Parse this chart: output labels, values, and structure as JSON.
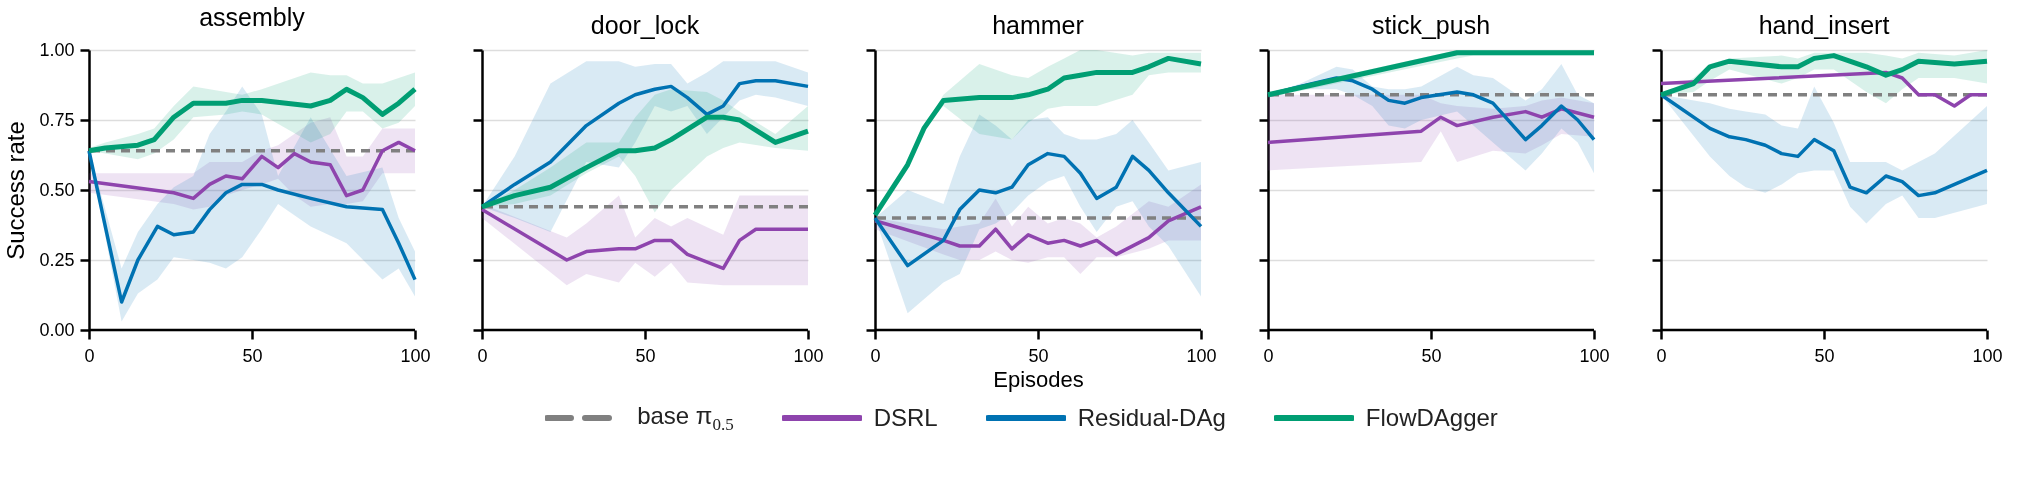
{
  "chart_data": [
    {
      "type": "line",
      "title": "assembly",
      "ylabel": "Success rate",
      "xlim": [
        0,
        100
      ],
      "xticks": [
        0,
        50,
        100
      ],
      "ylim": [
        0,
        1
      ],
      "yticks": [
        {
          "value": 0,
          "label": "0.00"
        },
        {
          "value": 0.25,
          "label": "0.25"
        },
        {
          "value": 0.5,
          "label": "0.50"
        },
        {
          "value": 0.75,
          "label": "0.75"
        },
        {
          "value": 1,
          "label": "1.00"
        }
      ],
      "grid": "y",
      "legend": "bottom",
      "ref_lines": [
        {
          "axis": "y",
          "value": 0.64,
          "label": "base π$_{0.5}$",
          "color": "#808080",
          "line_style": "dashed"
        }
      ],
      "series": [
        {
          "name": "DSRL",
          "color": "#8e44ad",
          "x": [
            0,
            26,
            32,
            37,
            42,
            47,
            53,
            58,
            63,
            68,
            74,
            79,
            84,
            90,
            95,
            100
          ],
          "values": [
            0.53,
            0.49,
            0.47,
            0.52,
            0.55,
            0.54,
            0.62,
            0.58,
            0.63,
            0.6,
            0.59,
            0.48,
            0.5,
            0.64,
            0.67,
            0.64
          ],
          "lower": [
            0.49,
            0.45,
            0.43,
            0.44,
            0.48,
            0.5,
            0.52,
            0.54,
            0.48,
            0.44,
            0.45,
            0.45,
            0.46,
            0.56,
            0.56,
            0.56
          ],
          "upper": [
            0.56,
            0.56,
            0.56,
            0.6,
            0.6,
            0.6,
            0.64,
            0.66,
            0.7,
            0.74,
            0.76,
            0.62,
            0.62,
            0.72,
            0.72,
            0.72
          ]
        },
        {
          "name": "Residual-DAg",
          "color": "#0072b2",
          "x": [
            0,
            10,
            15,
            21,
            26,
            32,
            37,
            42,
            47,
            53,
            58,
            68,
            79,
            90,
            95,
            100
          ],
          "values": [
            0.64,
            0.1,
            0.25,
            0.37,
            0.34,
            0.35,
            0.43,
            0.49,
            0.52,
            0.52,
            0.5,
            0.47,
            0.44,
            0.43,
            0.31,
            0.18
          ],
          "lower": [
            0.64,
            0.03,
            0.13,
            0.18,
            0.26,
            0.25,
            0.24,
            0.22,
            0.26,
            0.36,
            0.45,
            0.37,
            0.31,
            0.18,
            0.22,
            0.12
          ],
          "upper": [
            0.64,
            0.22,
            0.35,
            0.45,
            0.51,
            0.55,
            0.7,
            0.78,
            0.87,
            0.77,
            0.55,
            0.76,
            0.55,
            0.58,
            0.4,
            0.28
          ]
        },
        {
          "name": "FlowDAgger",
          "color": "#009e73",
          "x": [
            0,
            5,
            15,
            20,
            26,
            32,
            42,
            47,
            53,
            68,
            74,
            79,
            84,
            90,
            95,
            100
          ],
          "values": [
            0.64,
            0.65,
            0.66,
            0.68,
            0.76,
            0.81,
            0.81,
            0.82,
            0.82,
            0.8,
            0.82,
            0.86,
            0.83,
            0.77,
            0.81,
            0.86
          ],
          "lower": [
            0.64,
            0.63,
            0.61,
            0.63,
            0.68,
            0.76,
            0.77,
            0.78,
            0.77,
            0.67,
            0.7,
            0.78,
            0.78,
            0.72,
            0.74,
            0.8
          ],
          "upper": [
            0.65,
            0.67,
            0.7,
            0.72,
            0.8,
            0.87,
            0.85,
            0.84,
            0.86,
            0.92,
            0.91,
            0.91,
            0.88,
            0.88,
            0.9,
            0.92
          ]
        }
      ]
    },
    {
      "type": "line",
      "title": "door_lock",
      "xlim": [
        0,
        100
      ],
      "xticks": [
        0,
        50,
        100
      ],
      "ylim": [
        0,
        1
      ],
      "yticks": [
        0,
        0.25,
        0.5,
        0.75,
        1
      ],
      "tick_labels": "x",
      "grid": "y",
      "ref_lines": [
        {
          "axis": "y",
          "value": 0.44,
          "color": "#808080",
          "line_style": "dashed"
        }
      ],
      "series": [
        {
          "name": "DSRL",
          "color": "#8e44ad",
          "x": [
            0,
            26,
            32,
            42,
            47,
            53,
            58,
            63,
            74,
            79,
            84,
            100
          ],
          "values": [
            0.43,
            0.25,
            0.28,
            0.29,
            0.29,
            0.32,
            0.32,
            0.27,
            0.22,
            0.32,
            0.36,
            0.36
          ],
          "lower": [
            0.4,
            0.16,
            0.2,
            0.17,
            0.24,
            0.19,
            0.24,
            0.17,
            0.16,
            0.16,
            0.16,
            0.16
          ],
          "upper": [
            0.45,
            0.33,
            0.38,
            0.48,
            0.33,
            0.4,
            0.37,
            0.4,
            0.34,
            0.48,
            0.48,
            0.48
          ]
        },
        {
          "name": "Residual-DAg",
          "color": "#0072b2",
          "x": [
            0,
            10,
            21,
            32,
            42,
            47,
            53,
            58,
            63,
            69,
            74,
            79,
            84,
            90,
            100
          ],
          "values": [
            0.44,
            0.52,
            0.6,
            0.73,
            0.81,
            0.84,
            0.86,
            0.87,
            0.83,
            0.77,
            0.8,
            0.88,
            0.89,
            0.89,
            0.87
          ],
          "lower": [
            0.44,
            0.4,
            0.35,
            0.6,
            0.58,
            0.67,
            0.8,
            0.78,
            0.8,
            0.7,
            0.76,
            0.82,
            0.84,
            0.83,
            0.8
          ],
          "upper": [
            0.44,
            0.62,
            0.88,
            0.96,
            0.96,
            0.94,
            0.95,
            0.95,
            0.88,
            0.92,
            0.96,
            0.96,
            0.96,
            0.96,
            0.92
          ]
        },
        {
          "name": "FlowDAgger",
          "color": "#009e73",
          "x": [
            0,
            10,
            21,
            32,
            42,
            47,
            53,
            58,
            69,
            74,
            79,
            90,
            100
          ],
          "values": [
            0.44,
            0.48,
            0.51,
            0.58,
            0.64,
            0.64,
            0.65,
            0.68,
            0.76,
            0.76,
            0.75,
            0.67,
            0.71
          ],
          "lower": [
            0.44,
            0.45,
            0.48,
            0.56,
            0.62,
            0.55,
            0.42,
            0.5,
            0.62,
            0.65,
            0.67,
            0.65,
            0.64
          ],
          "upper": [
            0.44,
            0.5,
            0.58,
            0.67,
            0.67,
            0.76,
            0.84,
            0.86,
            0.85,
            0.82,
            0.78,
            0.7,
            0.8
          ]
        }
      ]
    },
    {
      "type": "line",
      "title": "hammer",
      "xlabel": "Episodes",
      "xlim": [
        0,
        100
      ],
      "xticks": [
        0,
        50,
        100
      ],
      "ylim": [
        0,
        1
      ],
      "yticks": [
        0,
        0.25,
        0.5,
        0.75,
        1
      ],
      "tick_labels": "x",
      "grid": "y",
      "ref_lines": [
        {
          "axis": "y",
          "value": 0.4,
          "color": "#808080",
          "line_style": "dashed"
        }
      ],
      "series": [
        {
          "name": "DSRL",
          "color": "#8e44ad",
          "x": [
            0,
            21,
            26,
            32,
            37,
            42,
            47,
            53,
            58,
            63,
            68,
            74,
            84,
            90,
            100
          ],
          "values": [
            0.39,
            0.32,
            0.3,
            0.3,
            0.36,
            0.29,
            0.34,
            0.31,
            0.32,
            0.3,
            0.32,
            0.27,
            0.33,
            0.39,
            0.44
          ],
          "lower": [
            0.36,
            0.27,
            0.25,
            0.25,
            0.28,
            0.25,
            0.24,
            0.26,
            0.26,
            0.2,
            0.26,
            0.26,
            0.29,
            0.32,
            0.32
          ],
          "upper": [
            0.4,
            0.36,
            0.37,
            0.38,
            0.47,
            0.37,
            0.44,
            0.38,
            0.4,
            0.38,
            0.33,
            0.37,
            0.46,
            0.44,
            0.52
          ]
        },
        {
          "name": "Residual-DAg",
          "color": "#0072b2",
          "x": [
            0,
            10,
            21,
            26,
            32,
            37,
            42,
            47,
            53,
            58,
            63,
            68,
            74,
            79,
            84,
            90,
            100
          ],
          "values": [
            0.4,
            0.23,
            0.32,
            0.43,
            0.5,
            0.49,
            0.51,
            0.59,
            0.63,
            0.62,
            0.56,
            0.47,
            0.51,
            0.62,
            0.57,
            0.49,
            0.37
          ],
          "lower": [
            0.4,
            0.06,
            0.17,
            0.2,
            0.36,
            0.38,
            0.42,
            0.48,
            0.53,
            0.55,
            0.44,
            0.35,
            0.44,
            0.46,
            0.37,
            0.3,
            0.12
          ],
          "upper": [
            0.4,
            0.5,
            0.45,
            0.62,
            0.77,
            0.73,
            0.68,
            0.75,
            0.76,
            0.7,
            0.68,
            0.68,
            0.7,
            0.75,
            0.67,
            0.57,
            0.6
          ]
        },
        {
          "name": "FlowDAgger",
          "color": "#009e73",
          "x": [
            0,
            10,
            15,
            21,
            32,
            42,
            47,
            53,
            58,
            63,
            68,
            79,
            84,
            90,
            100
          ],
          "values": [
            0.41,
            0.59,
            0.72,
            0.82,
            0.83,
            0.83,
            0.84,
            0.86,
            0.9,
            0.91,
            0.92,
            0.92,
            0.94,
            0.97,
            0.95
          ],
          "lower": [
            0.41,
            0.59,
            0.72,
            0.8,
            0.7,
            0.68,
            0.74,
            0.79,
            0.8,
            0.8,
            0.8,
            0.84,
            0.91,
            0.92,
            0.92
          ],
          "upper": [
            0.41,
            0.59,
            0.72,
            0.84,
            0.95,
            0.91,
            0.9,
            0.94,
            0.97,
            1,
            1,
            0.98,
            0.99,
            0.99,
            0.99
          ]
        }
      ]
    },
    {
      "type": "line",
      "title": "stick_push",
      "xlim": [
        0,
        100
      ],
      "xticks": [
        0,
        50,
        100
      ],
      "ylim": [
        0,
        1
      ],
      "yticks": [
        0,
        0.25,
        0.5,
        0.75,
        1
      ],
      "tick_labels": "x",
      "grid": "y",
      "ref_lines": [
        {
          "axis": "y",
          "value": 0.84,
          "color": "#808080",
          "line_style": "dashed"
        }
      ],
      "series": [
        {
          "name": "DSRL",
          "color": "#8e44ad",
          "x": [
            0,
            47,
            53,
            58,
            69,
            79,
            84,
            90,
            100
          ],
          "values": [
            0.67,
            0.71,
            0.76,
            0.73,
            0.76,
            0.78,
            0.76,
            0.79,
            0.76
          ],
          "lower": [
            0.57,
            0.6,
            0.71,
            0.6,
            0.64,
            0.63,
            0.66,
            0.7,
            0.69
          ],
          "upper": [
            0.84,
            0.84,
            0.81,
            0.8,
            0.79,
            0.8,
            0.82,
            0.83,
            0.81
          ]
        },
        {
          "name": "Residual-DAg",
          "color": "#0072b2",
          "x": [
            0,
            10,
            21,
            26,
            32,
            37,
            42,
            47,
            58,
            63,
            69,
            79,
            84,
            90,
            95,
            100
          ],
          "values": [
            0.84,
            0.87,
            0.9,
            0.89,
            0.86,
            0.82,
            0.81,
            0.83,
            0.85,
            0.84,
            0.81,
            0.68,
            0.73,
            0.8,
            0.75,
            0.68
          ],
          "lower": [
            0.84,
            0.86,
            0.86,
            0.84,
            0.8,
            0.73,
            0.72,
            0.75,
            0.78,
            0.73,
            0.67,
            0.57,
            0.63,
            0.72,
            0.67,
            0.56
          ],
          "upper": [
            0.84,
            0.88,
            0.94,
            0.93,
            0.87,
            0.86,
            0.86,
            0.87,
            0.94,
            0.91,
            0.9,
            0.82,
            0.86,
            0.95,
            0.84,
            0.81
          ]
        },
        {
          "name": "FlowDAgger",
          "color": "#009e73",
          "x": [
            0,
            58,
            63,
            100
          ],
          "values": [
            0.84,
            0.99,
            0.99,
            0.99
          ],
          "lower": [
            0.83,
            0.97,
            0.98,
            0.98
          ],
          "upper": [
            0.85,
            1,
            1,
            1
          ]
        }
      ]
    },
    {
      "type": "line",
      "title": "hand_insert",
      "xlim": [
        0,
        100
      ],
      "xticks": [
        0,
        50,
        100
      ],
      "ylim": [
        0,
        1
      ],
      "yticks": [
        0,
        0.25,
        0.5,
        0.75,
        1
      ],
      "tick_labels": "x",
      "grid": "y",
      "ref_lines": [
        {
          "axis": "y",
          "value": 0.84,
          "color": "#808080",
          "line_style": "dashed"
        }
      ],
      "series": [
        {
          "name": "DSRL",
          "color": "#8e44ad",
          "x": [
            0,
            69,
            74,
            79,
            84,
            90,
            95,
            100
          ],
          "values": [
            0.88,
            0.92,
            0.9,
            0.84,
            0.84,
            0.8,
            0.84,
            0.84
          ]
        },
        {
          "name": "Residual-DAg",
          "color": "#0072b2",
          "x": [
            0,
            15,
            21,
            26,
            32,
            37,
            42,
            47,
            53,
            58,
            63,
            69,
            74,
            79,
            84,
            100
          ],
          "values": [
            0.84,
            0.72,
            0.69,
            0.68,
            0.66,
            0.63,
            0.62,
            0.68,
            0.64,
            0.51,
            0.49,
            0.55,
            0.53,
            0.48,
            0.49,
            0.57
          ],
          "lower": [
            0.84,
            0.62,
            0.55,
            0.51,
            0.49,
            0.52,
            0.56,
            0.57,
            0.57,
            0.44,
            0.38,
            0.45,
            0.48,
            0.4,
            0.4,
            0.45
          ],
          "upper": [
            0.84,
            0.81,
            0.79,
            0.78,
            0.77,
            0.73,
            0.72,
            0.87,
            0.74,
            0.6,
            0.6,
            0.6,
            0.57,
            0.6,
            0.63,
            0.8
          ]
        },
        {
          "name": "FlowDAgger",
          "color": "#009e73",
          "x": [
            0,
            10,
            15,
            21,
            37,
            42,
            47,
            53,
            63,
            69,
            74,
            79,
            90,
            100
          ],
          "values": [
            0.84,
            0.88,
            0.94,
            0.96,
            0.94,
            0.94,
            0.97,
            0.98,
            0.94,
            0.91,
            0.93,
            0.96,
            0.95,
            0.96
          ],
          "lower": [
            0.84,
            0.85,
            0.89,
            0.93,
            0.88,
            0.9,
            0.93,
            0.93,
            0.85,
            0.81,
            0.86,
            0.9,
            0.9,
            0.88
          ],
          "upper": [
            0.84,
            0.9,
            0.95,
            0.97,
            0.98,
            0.97,
            0.99,
            0.99,
            0.99,
            0.98,
            0.97,
            0.99,
            0.98,
            1
          ]
        }
      ]
    }
  ]
}
